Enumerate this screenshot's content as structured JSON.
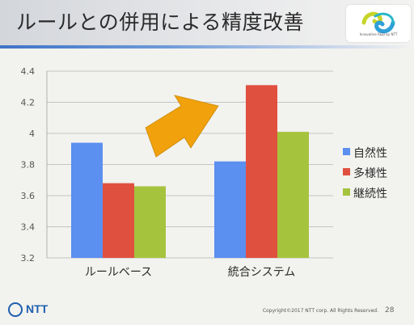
{
  "slide": {
    "title": "ルールとの併用による精度改善",
    "logo": {
      "tagline": "Innovative R&D by NTT"
    },
    "footer": {
      "brand": "NTT",
      "copyright": "Copyright©2017 NTT corp. All Rights Reserved.",
      "page_number": "28"
    }
  },
  "chart_data": {
    "type": "bar",
    "categories": [
      "ルールベース",
      "統合システム"
    ],
    "series": [
      {
        "name": "自然性",
        "values": [
          3.94,
          3.82
        ],
        "color": "#5b8ff0"
      },
      {
        "name": "多様性",
        "values": [
          3.68,
          4.31
        ],
        "color": "#e0503f"
      },
      {
        "name": "継続性",
        "values": [
          3.66,
          4.01
        ],
        "color": "#a6c33e"
      }
    ],
    "ylim": [
      3.2,
      4.4
    ],
    "yticks": [
      "3.2",
      "3.4",
      "3.6",
      "3.8",
      "4",
      "4.2",
      "4.4"
    ],
    "grid": true,
    "legend_position": "right",
    "annotation": {
      "shape": "arrow",
      "direction": "up-right",
      "color": "#f0a10b"
    }
  }
}
